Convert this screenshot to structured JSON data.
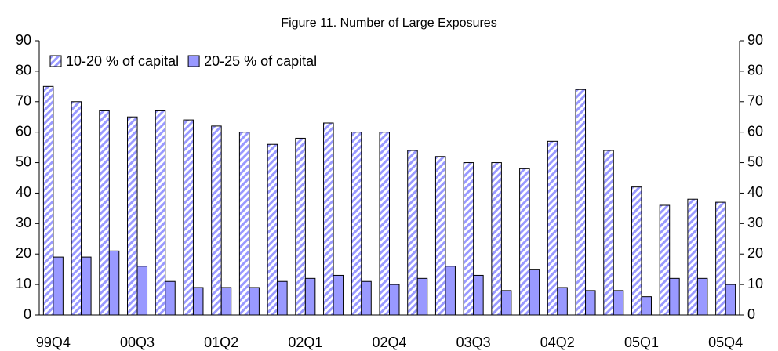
{
  "chart_data": {
    "type": "bar",
    "title": "Figure 11.  Number of Large Exposures",
    "categories": [
      "99Q4",
      null,
      null,
      "00Q3",
      null,
      null,
      "01Q2",
      null,
      null,
      "02Q1",
      null,
      null,
      "02Q4",
      null,
      null,
      "03Q3",
      null,
      null,
      "04Q2",
      null,
      null,
      "05Q1",
      null,
      null,
      "05Q4"
    ],
    "series": [
      {
        "name": "10-20 % of capital",
        "color": "#9999ff",
        "pattern": "hatch",
        "values": [
          75,
          70,
          67,
          65,
          67,
          64,
          62,
          60,
          56,
          58,
          63,
          60,
          60,
          54,
          52,
          50,
          50,
          48,
          57,
          74,
          54,
          42,
          36,
          38,
          37
        ]
      },
      {
        "name": "20-25 % of capital",
        "color": "#9999ff",
        "values": [
          19,
          19,
          21,
          16,
          11,
          9,
          9,
          9,
          11,
          12,
          13,
          11,
          10,
          12,
          16,
          13,
          8,
          15,
          9,
          8,
          8,
          6,
          12,
          12,
          10
        ]
      }
    ],
    "ylim": [
      0,
      90
    ],
    "yticks": [
      0,
      10,
      20,
      30,
      40,
      50,
      60,
      70,
      80,
      90
    ],
    "y2lim": [
      0,
      90
    ],
    "y2ticks": [
      0,
      10,
      20,
      30,
      40,
      50,
      60,
      70,
      80,
      90
    ],
    "legend": "top-left"
  }
}
